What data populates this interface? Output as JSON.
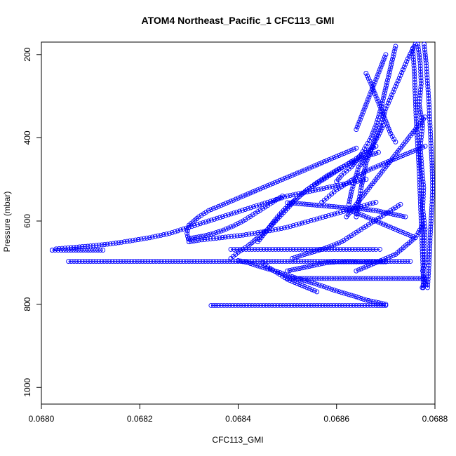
{
  "chart_data": {
    "type": "scatter",
    "title": "ATOM4 Northeast_Pacific_1 CFC113_GMI",
    "xlabel": "CFC113_GMI",
    "ylabel": "Pressure (mbar)",
    "xlim": [
      0.068,
      0.0688
    ],
    "ylim": [
      1040,
      170
    ],
    "y_reversed": true,
    "x_ticks": [
      "0.0680",
      "0.0682",
      "0.0684",
      "0.0686",
      "0.0688"
    ],
    "x_tick_values": [
      0.068,
      0.0682,
      0.0684,
      0.0686,
      0.0688
    ],
    "y_ticks": [
      "200",
      "400",
      "600",
      "800",
      "1000"
    ],
    "y_tick_values": [
      200,
      400,
      600,
      800,
      1000
    ],
    "marker": "open-circle",
    "color": "#0000ff",
    "connected": true,
    "grid": false,
    "legend": "none",
    "series": [
      {
        "x": [
          0.068765,
          0.06877,
          0.068772,
          0.068768,
          0.068775,
          0.06877,
          0.068773,
          0.068777,
          0.068775,
          0.06878,
          0.068778,
          0.06878,
          0.068775,
          0.068778,
          0.06878,
          0.068776,
          0.068774,
          0.068776
        ],
        "y": [
          175,
          220,
          270,
          320,
          370,
          420,
          470,
          520,
          570,
          620,
          660,
          700,
          720,
          740,
          750,
          755,
          760,
          760
        ]
      },
      {
        "x": [
          0.068778,
          0.068782,
          0.068785,
          0.068788,
          0.06879,
          0.068792,
          0.068794,
          0.068795,
          0.068795,
          0.068794,
          0.068792,
          0.06879,
          0.068789,
          0.068788,
          0.068787,
          0.068786,
          0.068785
        ],
        "y": [
          175,
          220,
          270,
          320,
          370,
          420,
          460,
          500,
          530,
          560,
          600,
          640,
          680,
          700,
          720,
          740,
          760
        ]
      },
      {
        "x": [
          0.068755,
          0.068758,
          0.06876,
          0.068762,
          0.068765,
          0.068768,
          0.06877,
          0.068772,
          0.068774,
          0.068776,
          0.068776
        ],
        "y": [
          185,
          240,
          300,
          360,
          420,
          480,
          540,
          600,
          660,
          720,
          760
        ]
      },
      {
        "x": [
          0.06876,
          0.068745,
          0.06873,
          0.068715,
          0.0687,
          0.06869,
          0.06868,
          0.06867,
          0.06866,
          0.068655,
          0.06865,
          0.068645,
          0.06864
        ],
        "y": [
          175,
          210,
          250,
          290,
          330,
          370,
          400,
          430,
          460,
          490,
          520,
          555,
          590
        ]
      },
      {
        "x": [
          0.068695,
          0.068685,
          0.068675,
          0.068665,
          0.068655,
          0.068645,
          0.06864,
          0.068635,
          0.06863,
          0.068625
        ],
        "y": [
          370,
          395,
          415,
          435,
          455,
          470,
          490,
          510,
          530,
          560
        ]
      },
      {
        "x": [
          0.06872,
          0.06871,
          0.0687,
          0.06869,
          0.06868,
          0.06867,
          0.06866,
          0.06865,
          0.06864,
          0.06863,
          0.06862,
          0.06861,
          0.0686
        ],
        "y": [
          180,
          230,
          280,
          330,
          370,
          400,
          420,
          440,
          455,
          470,
          480,
          490,
          505
        ]
      },
      {
        "x": [
          0.06878,
          0.06876,
          0.06874,
          0.06872,
          0.0687,
          0.06868,
          0.06866,
          0.06864,
          0.06862,
          0.0686,
          0.068585,
          0.06857
        ],
        "y": [
          420,
          430,
          440,
          450,
          460,
          470,
          480,
          495,
          510,
          525,
          540,
          555
        ]
      },
      {
        "x": [
          0.06866,
          0.06867,
          0.06868,
          0.06869,
          0.0687,
          0.06871,
          0.06872
        ],
        "y": [
          245,
          270,
          300,
          330,
          360,
          390,
          410
        ]
      },
      {
        "x": [
          0.06868,
          0.06866,
          0.06864,
          0.06862,
          0.0686,
          0.06858,
          0.06856,
          0.06854,
          0.06852,
          0.0685,
          0.06848,
          0.06846,
          0.06844
        ],
        "y": [
          420,
          435,
          450,
          465,
          480,
          495,
          510,
          525,
          545,
          565,
          590,
          620,
          650
        ]
      },
      {
        "x": [
          0.06864,
          0.06862,
          0.0686,
          0.06858,
          0.06856,
          0.06854,
          0.06852,
          0.0685,
          0.06848,
          0.06846,
          0.06844,
          0.06842,
          0.0684,
          0.06838,
          0.06836,
          0.06834,
          0.06832,
          0.0683,
          0.068296,
          0.0683
        ],
        "y": [
          425,
          435,
          445,
          455,
          465,
          475,
          485,
          495,
          505,
          515,
          525,
          535,
          545,
          555,
          565,
          575,
          590,
          610,
          630,
          650
        ]
      },
      {
        "x": [
          0.06866,
          0.06862,
          0.06858,
          0.06854,
          0.0685,
          0.06846,
          0.06842,
          0.06838,
          0.06834,
          0.0683,
          0.06826,
          0.06822,
          0.06818,
          0.06814,
          0.0681,
          0.06806,
          0.06803,
          0.068022
        ],
        "y": [
          500,
          510,
          520,
          530,
          540,
          555,
          570,
          585,
          600,
          615,
          630,
          640,
          648,
          655,
          660,
          664,
          667,
          670
        ]
      },
      {
        "x": [
          0.06849,
          0.06847,
          0.06845,
          0.06843,
          0.06841,
          0.06839,
          0.06837,
          0.06835,
          0.06833,
          0.06831,
          0.0683
        ],
        "y": [
          540,
          555,
          570,
          585,
          600,
          612,
          622,
          630,
          636,
          640,
          642
        ]
      },
      {
        "x": [
          0.068022,
          0.06804,
          0.06806,
          0.06808,
          0.0681,
          0.06812,
          0.068125
        ],
        "y": [
          670,
          670,
          670,
          670,
          670,
          670,
          670
        ]
      },
      {
        "x": [
          0.06868,
          0.06865,
          0.06862,
          0.06859,
          0.06856,
          0.06853,
          0.0685,
          0.06847,
          0.06844,
          0.06841,
          0.06838,
          0.06835,
          0.06832,
          0.0683
        ],
        "y": [
          555,
          565,
          575,
          585,
          595,
          605,
          615,
          622,
          628,
          634,
          638,
          642,
          646,
          650
        ]
      },
      {
        "x": [
          0.068685,
          0.06866,
          0.06864,
          0.06862,
          0.0686,
          0.06858,
          0.06856,
          0.06854,
          0.06852,
          0.0685,
          0.06848,
          0.06846,
          0.06844,
          0.06842,
          0.0684,
          0.068385
        ],
        "y": [
          435,
          445,
          455,
          465,
          478,
          492,
          508,
          525,
          545,
          570,
          595,
          620,
          640,
          660,
          675,
          690
        ]
      },
      {
        "x": [
          0.068385,
          0.06841,
          0.06844,
          0.06847,
          0.0685,
          0.06853,
          0.06856,
          0.06859,
          0.06862,
          0.06865,
          0.06868,
          0.068688
        ],
        "y": [
          668,
          668,
          668,
          668,
          668,
          668,
          668,
          668,
          668,
          668,
          668,
          668
        ]
      },
      {
        "x": [
          0.068055,
          0.0681,
          0.06815,
          0.0682,
          0.06825,
          0.0683,
          0.06835,
          0.0684,
          0.06845,
          0.0685,
          0.06855,
          0.0686,
          0.06865,
          0.0687,
          0.06875
        ],
        "y": [
          697,
          697,
          697,
          697,
          697,
          697,
          697,
          697,
          697,
          697,
          697,
          697,
          697,
          697,
          697
        ]
      },
      {
        "x": [
          0.0685,
          0.06852,
          0.06854,
          0.06856,
          0.06858,
          0.0686,
          0.06862,
          0.06864,
          0.06866,
          0.06868,
          0.0687,
          0.06872,
          0.06874,
          0.06876,
          0.06878
        ],
        "y": [
          738,
          738,
          738,
          738,
          738,
          738,
          738,
          738,
          738,
          738,
          738,
          738,
          738,
          738,
          738
        ]
      },
      {
        "x": [
          0.068345,
          0.06836,
          0.0684,
          0.06844,
          0.06848,
          0.06852,
          0.06856,
          0.0686,
          0.06864,
          0.06868,
          0.0687
        ],
        "y": [
          803,
          803,
          803,
          803,
          803,
          803,
          803,
          803,
          803,
          803,
          803
        ]
      },
      {
        "x": [
          0.0687,
          0.06868,
          0.06866,
          0.06864,
          0.06862,
          0.0686,
          0.06858,
          0.06856,
          0.06854,
          0.06852,
          0.0685,
          0.06848,
          0.06846,
          0.06844,
          0.06842,
          0.0684
        ],
        "y": [
          800,
          795,
          790,
          782,
          775,
          768,
          760,
          752,
          745,
          738,
          730,
          722,
          715,
          708,
          700,
          695
        ]
      },
      {
        "x": [
          0.06856,
          0.06854,
          0.06852,
          0.0685,
          0.06848,
          0.06846,
          0.06845
        ],
        "y": [
          770,
          760,
          750,
          740,
          725,
          710,
          700
        ]
      },
      {
        "x": [
          0.06864,
          0.06866,
          0.06868,
          0.0687,
          0.06872,
          0.06874,
          0.06876,
          0.068775
        ],
        "y": [
          720,
          710,
          700,
          690,
          680,
          660,
          640,
          610
        ]
      },
      {
        "x": [
          0.06874,
          0.06872,
          0.0687,
          0.06868,
          0.06866,
          0.06864,
          0.06862,
          0.0686,
          0.06858,
          0.06856,
          0.06854,
          0.06852,
          0.0685
        ],
        "y": [
          590,
          585,
          580,
          575,
          572,
          570,
          568,
          566,
          564,
          562,
          560,
          558,
          556
        ]
      },
      {
        "x": [
          0.06876,
          0.06874,
          0.06872,
          0.0687,
          0.06868,
          0.06866,
          0.06864,
          0.06862
        ],
        "y": [
          640,
          630,
          620,
          610,
          600,
          590,
          580,
          572
        ]
      },
      {
        "x": [
          0.0687,
          0.06869,
          0.06868,
          0.06867,
          0.06866,
          0.06865,
          0.06864
        ],
        "y": [
          200,
          230,
          260,
          290,
          320,
          350,
          380
        ]
      },
      {
        "x": [
          0.06878,
          0.06876,
          0.06874,
          0.06872,
          0.0687,
          0.06868,
          0.06866,
          0.06864,
          0.06862
        ],
        "y": [
          350,
          380,
          410,
          440,
          470,
          500,
          530,
          560,
          590
        ]
      },
      {
        "x": [
          0.06873,
          0.06871,
          0.06869,
          0.06867,
          0.06865,
          0.06863,
          0.06861,
          0.06859,
          0.06857,
          0.06855,
          0.06853,
          0.06851
        ],
        "y": [
          560,
          575,
          590,
          605,
          620,
          635,
          650,
          660,
          668,
          675,
          682,
          690
        ]
      },
      {
        "x": [
          0.0685,
          0.06852,
          0.06854,
          0.06856,
          0.06858,
          0.0686,
          0.06862,
          0.06864,
          0.06866,
          0.06868,
          0.0687
        ],
        "y": [
          720,
          715,
          710,
          705,
          700,
          698,
          698,
          698,
          698,
          698,
          698
        ]
      }
    ]
  }
}
